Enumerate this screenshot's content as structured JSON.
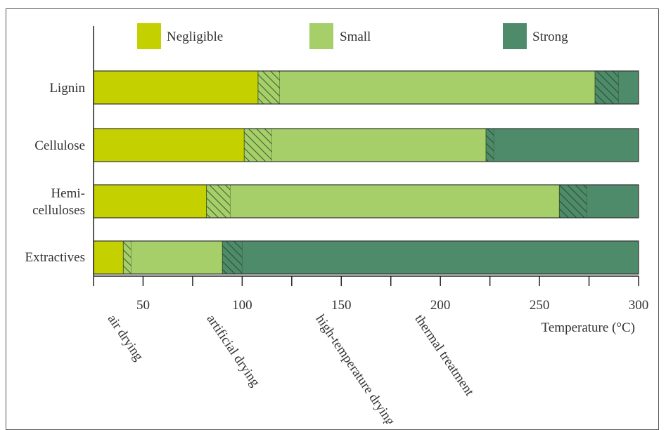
{
  "chart_data": {
    "type": "bar",
    "orientation": "horizontal-stacked",
    "title": "",
    "xlabel": "Temperature (°C)",
    "ylabel": "",
    "xlim": [
      25,
      300
    ],
    "x_ticks": [
      25,
      50,
      75,
      100,
      125,
      150,
      175,
      200,
      225,
      250,
      275,
      300
    ],
    "x_tick_labels": [
      {
        "value": 50,
        "label": "50"
      },
      {
        "value": 100,
        "label": "100"
      },
      {
        "value": 150,
        "label": "150"
      },
      {
        "value": 200,
        "label": "200"
      },
      {
        "value": 250,
        "label": "250"
      },
      {
        "value": 300,
        "label": "300"
      }
    ],
    "legend": {
      "placement": "top",
      "entries": [
        {
          "key": "negligible",
          "label": "Negligible",
          "color": "#c5d000"
        },
        {
          "key": "small",
          "label": "Small",
          "color": "#a6cf6a"
        },
        {
          "key": "strong",
          "label": "Strong",
          "color": "#4e8b6a"
        }
      ]
    },
    "transition_style": "hatched",
    "categories": [
      {
        "label_lines": [
          "Lignin"
        ],
        "negligible_end": 108,
        "small_start": 119,
        "small_end": 278,
        "strong_start": 290,
        "max": 300
      },
      {
        "label_lines": [
          "Cellulose"
        ],
        "negligible_end": 101,
        "small_start": 115,
        "small_end": 223,
        "strong_start": 227,
        "max": 300
      },
      {
        "label_lines": [
          "Hemi-",
          "celluloses"
        ],
        "negligible_end": 82,
        "small_start": 94,
        "small_end": 260,
        "strong_start": 274,
        "max": 300
      },
      {
        "label_lines": [
          "Extractives"
        ],
        "negligible_end": 40,
        "small_start": 44,
        "small_end": 90,
        "strong_start": 100,
        "max": 300
      }
    ],
    "processes": [
      {
        "label": "air drying",
        "x": 32
      },
      {
        "label": "artificial drying",
        "x": 82
      },
      {
        "label": "high-temperature drying",
        "x": 137
      },
      {
        "label": "thermal treatment",
        "x": 187
      }
    ],
    "grid": false
  }
}
